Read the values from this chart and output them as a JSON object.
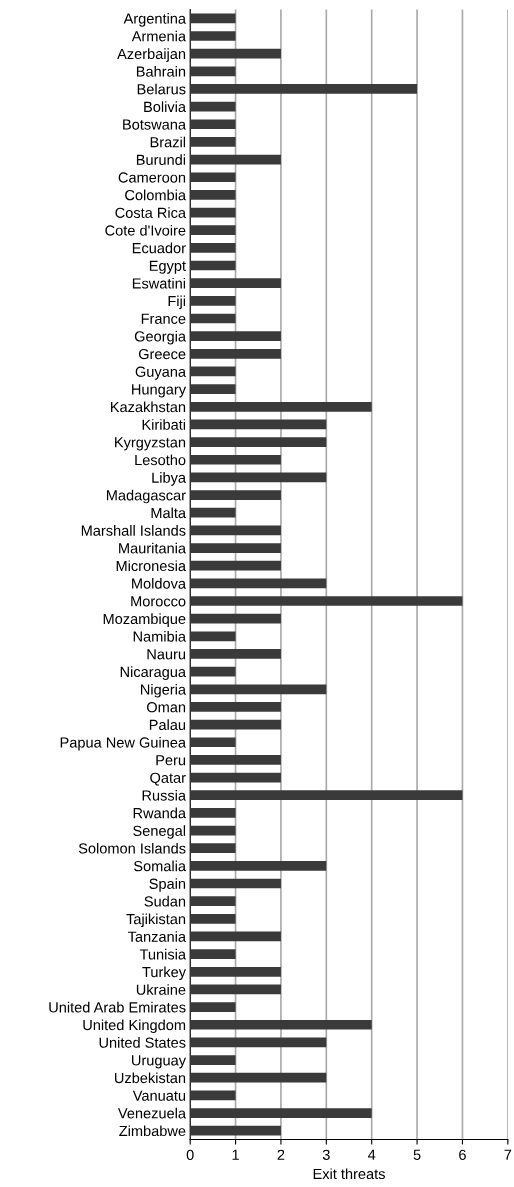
{
  "chart_data": {
    "type": "bar",
    "orientation": "horizontal",
    "xlabel": "Exit threats",
    "categories": [
      "Argentina",
      "Armenia",
      "Azerbaijan",
      "Bahrain",
      "Belarus",
      "Bolivia",
      "Botswana",
      "Brazil",
      "Burundi",
      "Cameroon",
      "Colombia",
      "Costa Rica",
      "Cote d'Ivoire",
      "Ecuador",
      "Egypt",
      "Eswatini",
      "Fiji",
      "France",
      "Georgia",
      "Greece",
      "Guyana",
      "Hungary",
      "Kazakhstan",
      "Kiribati",
      "Kyrgyzstan",
      "Lesotho",
      "Libya",
      "Madagascar",
      "Malta",
      "Marshall Islands",
      "Mauritania",
      "Micronesia",
      "Moldova",
      "Morocco",
      "Mozambique",
      "Namibia",
      "Nauru",
      "Nicaragua",
      "Nigeria",
      "Oman",
      "Palau",
      "Papua New Guinea",
      "Peru",
      "Qatar",
      "Russia",
      "Rwanda",
      "Senegal",
      "Solomon Islands",
      "Somalia",
      "Spain",
      "Sudan",
      "Tajikistan",
      "Tanzania",
      "Tunisia",
      "Turkey",
      "Ukraine",
      "United Arab Emirates",
      "United Kingdom",
      "United States",
      "Uruguay",
      "Uzbekistan",
      "Vanuatu",
      "Venezuela",
      "Zimbabwe"
    ],
    "values": [
      1,
      1,
      2,
      1,
      5,
      1,
      1,
      1,
      2,
      1,
      1,
      1,
      1,
      1,
      1,
      2,
      1,
      1,
      2,
      2,
      1,
      1,
      4,
      3,
      3,
      2,
      3,
      2,
      1,
      2,
      2,
      2,
      3,
      6,
      2,
      1,
      2,
      1,
      3,
      2,
      2,
      1,
      2,
      2,
      6,
      1,
      1,
      1,
      3,
      2,
      1,
      1,
      2,
      1,
      2,
      2,
      1,
      4,
      3,
      1,
      3,
      1,
      4,
      2
    ],
    "color": "#3a3a3a",
    "xlim": [
      0,
      7
    ],
    "xticks": [
      0,
      1,
      2,
      3,
      4,
      5,
      6,
      7
    ],
    "grid": "x"
  }
}
